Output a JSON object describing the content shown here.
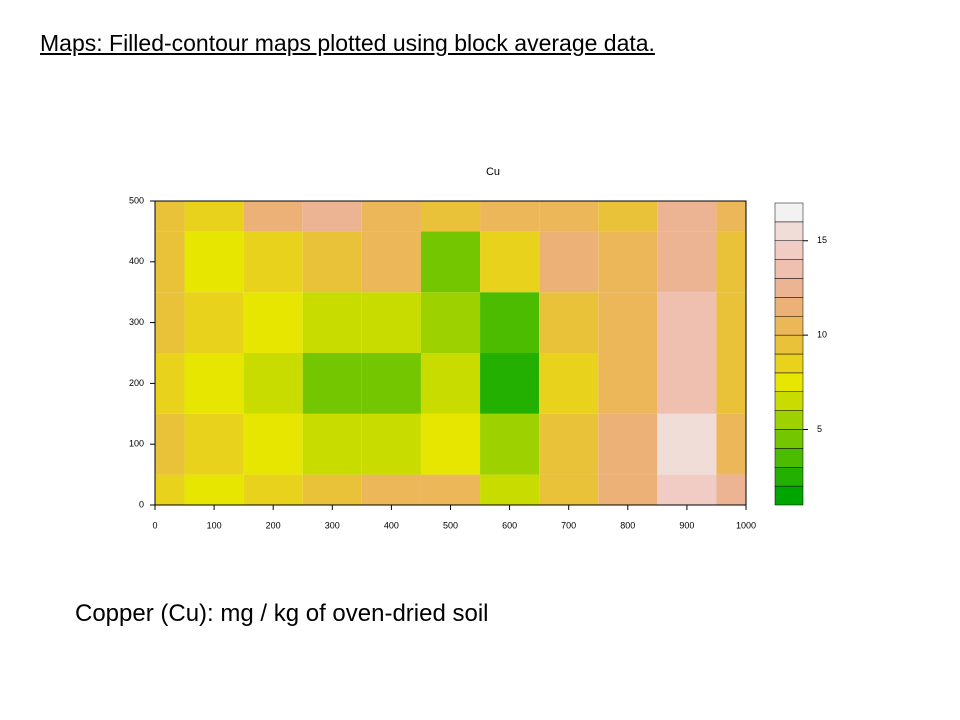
{
  "slide": {
    "title": "Maps: Filled-contour maps plotted using block average data.",
    "caption": "Copper (Cu): mg / kg of oven-dried soil"
  },
  "chart_data": {
    "type": "contour",
    "title": "Cu",
    "x": [
      0,
      100,
      200,
      300,
      400,
      500,
      600,
      700,
      800,
      900,
      1000
    ],
    "y": [
      0,
      100,
      200,
      300,
      400,
      500
    ],
    "z": [
      [
        8,
        7,
        8,
        9,
        10,
        10,
        6,
        9,
        11,
        14,
        12
      ],
      [
        9,
        8,
        7,
        6,
        6,
        7,
        5,
        9,
        11,
        15,
        10
      ],
      [
        8,
        7,
        6,
        4,
        4,
        6,
        2,
        8,
        10,
        13,
        9
      ],
      [
        9,
        8,
        7,
        6,
        6,
        5,
        3,
        9,
        10,
        13,
        9
      ],
      [
        9,
        7,
        8,
        9,
        10,
        4,
        8,
        11,
        10,
        12,
        9
      ],
      [
        9,
        8,
        11,
        12,
        10,
        9,
        10,
        10,
        9,
        12,
        10
      ]
    ],
    "xlim": [
      0,
      1000
    ],
    "ylim": [
      0,
      500
    ],
    "xticks": [
      0,
      100,
      200,
      300,
      400,
      500,
      600,
      700,
      800,
      900,
      1000
    ],
    "yticks": [
      0,
      100,
      200,
      300,
      400,
      500
    ],
    "colorbar": {
      "levels": [
        1,
        2,
        3,
        4,
        5,
        6,
        7,
        8,
        9,
        10,
        11,
        12,
        13,
        14,
        15,
        16,
        17
      ],
      "colors": [
        "#00A600",
        "#24B000",
        "#4BBC00",
        "#74C600",
        "#9ED100",
        "#C8DC00",
        "#E6E600",
        "#E8D21C",
        "#E9C23A",
        "#EBB758",
        "#ECB176",
        "#EDB494",
        "#EFBFAF",
        "#F0CCC4",
        "#F1DDD8",
        "#F2F2F2"
      ],
      "ticks": [
        5,
        10,
        15
      ]
    }
  }
}
